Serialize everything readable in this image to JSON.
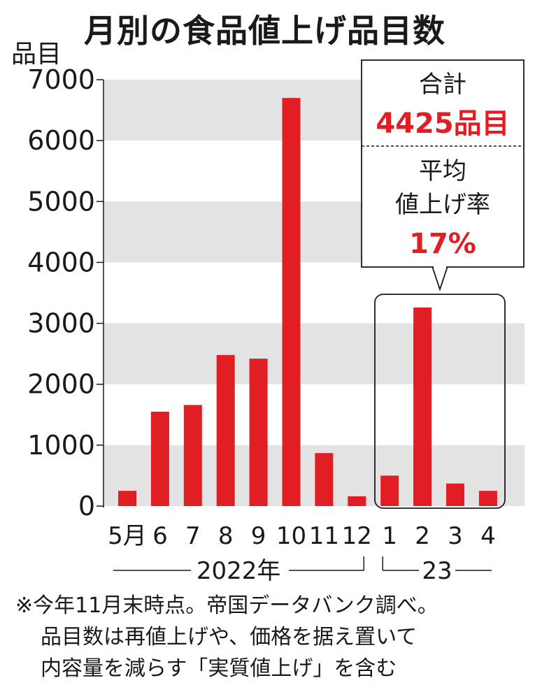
{
  "chart_data": {
    "type": "bar",
    "title": "月別の食品値上げ品目数",
    "ylabel": "品目",
    "categories": [
      "5月",
      "6",
      "7",
      "8",
      "9",
      "10",
      "11",
      "12",
      "1",
      "2",
      "3",
      "4"
    ],
    "values": [
      250,
      1550,
      1660,
      2480,
      2420,
      6700,
      870,
      160,
      500,
      3260,
      370,
      250
    ],
    "ylim": [
      0,
      7000
    ],
    "yticks": [
      0,
      1000,
      2000,
      3000,
      4000,
      5000,
      6000,
      7000
    ],
    "bar_color": "#e01e23",
    "grid": "alternating gray bands",
    "year_labels": [
      {
        "label": "2022年",
        "from": 0,
        "to": 7
      },
      {
        "label": "23",
        "from": 8,
        "to": 11
      }
    ],
    "callout": {
      "total_label": "合計",
      "total_value": "4425品目",
      "avg_label_1": "平均",
      "avg_label_2": "値上げ率",
      "avg_value": "17%"
    }
  },
  "note": {
    "line1": "※今年11月末時点。帝国データバンク調べ。",
    "line2": "品目数は再値上げや、価格を据え置いて",
    "line3": "内容量を減らす「実質値上げ」を含む"
  }
}
